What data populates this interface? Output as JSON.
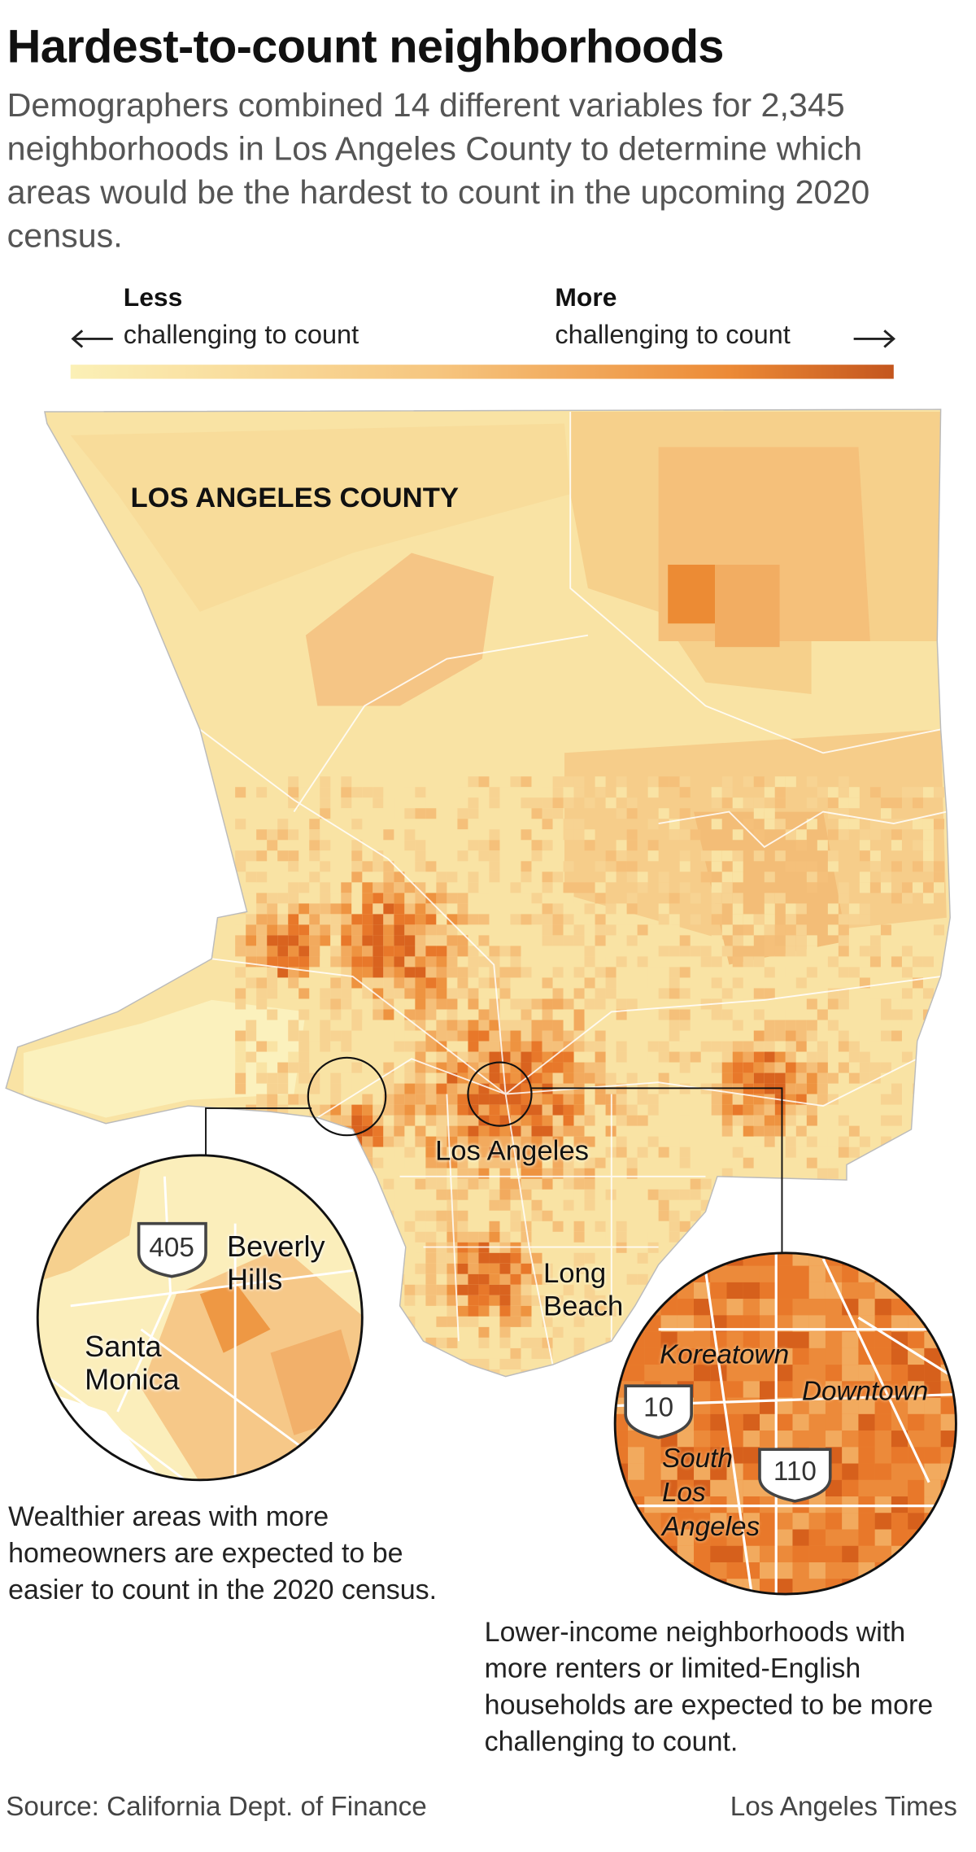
{
  "header": {
    "title": "Hardest-to-count neighborhoods",
    "subtitle": "Demographers combined 14 different variables for 2,345 neighborhoods in Los Angeles County to determine which areas would be the hardest to count in the upcoming 2020 census."
  },
  "legend": {
    "less": "Less",
    "less_text": "challenging to count",
    "more": "More",
    "more_text": "challenging to count"
  },
  "map": {
    "county_label": "LOS ANGELES COUNTY",
    "city_label": "Los Angeles",
    "long_beach_label": "Long Beach"
  },
  "left_inset": {
    "shield": "405",
    "labels": [
      "Beverly Hills",
      "Santa Monica"
    ],
    "caption": "Wealthier areas with more homeowners are expected to be easier to count in the 2020 census."
  },
  "right_inset": {
    "labels": [
      "Koreatown",
      "Downtown",
      "South Los Angeles"
    ],
    "shields": [
      "10",
      "110"
    ],
    "caption": "Lower-income neighborhoods with more renters or limited-English households are expected to be more challenging to count."
  },
  "footer": {
    "source": "Source: California Dept. of Finance",
    "credit": "Los Angeles Times"
  }
}
